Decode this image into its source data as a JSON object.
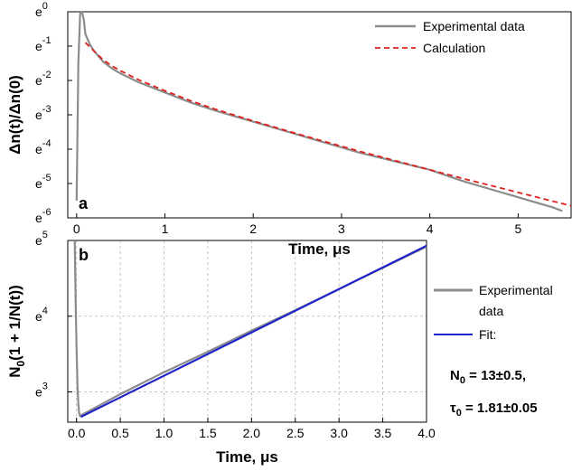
{
  "chart_data": [
    {
      "type": "line",
      "panel_label": "a",
      "xlabel": "Time, μs",
      "ylabel": "Δn(t)/Δn(0)",
      "y_scale": "log_e",
      "xlim": [
        -0.1,
        5.6
      ],
      "ylim_exponent": [
        -6,
        0
      ],
      "x_ticks": [
        0,
        1,
        2,
        3,
        4,
        5
      ],
      "y_ticks": [
        {
          "base": "e",
          "exp": "0",
          "value": 0
        },
        {
          "base": "e",
          "exp": "-1",
          "value": -1
        },
        {
          "base": "e",
          "exp": "-2",
          "value": -2
        },
        {
          "base": "e",
          "exp": "-3",
          "value": -3
        },
        {
          "base": "e",
          "exp": "-4",
          "value": -4
        },
        {
          "base": "e",
          "exp": "-5",
          "value": -5
        },
        {
          "base": "e",
          "exp": "-6",
          "value": -6
        }
      ],
      "grid": false,
      "legend_position": "top-right",
      "series": [
        {
          "name": "Experimental data",
          "color": "#8c8c8c",
          "style": "solid",
          "x": [
            0.0,
            0.02,
            0.04,
            0.06,
            0.08,
            0.1,
            0.15,
            0.2,
            0.3,
            0.4,
            0.5,
            0.7,
            1.0,
            1.3,
            1.6,
            2.0,
            2.4,
            2.8,
            3.2,
            3.6,
            4.0,
            4.4,
            4.8,
            5.0,
            5.2,
            5.4,
            5.5
          ],
          "log_y": [
            -5.5,
            -1.5,
            -0.05,
            0.0,
            -0.2,
            -0.65,
            -0.95,
            -1.15,
            -1.45,
            -1.65,
            -1.8,
            -2.05,
            -2.35,
            -2.65,
            -2.9,
            -3.2,
            -3.5,
            -3.8,
            -4.1,
            -4.35,
            -4.6,
            -4.95,
            -5.25,
            -5.4,
            -5.55,
            -5.7,
            -5.8
          ]
        },
        {
          "name": "Calculation",
          "color": "#e0201c",
          "style": "dashed",
          "x": [
            0.1,
            0.15,
            0.2,
            0.3,
            0.4,
            0.5,
            0.7,
            1.0,
            1.3,
            1.6,
            2.0,
            2.4,
            2.8,
            3.2,
            3.6,
            4.0,
            4.4,
            4.8,
            5.2,
            5.6
          ],
          "log_y": [
            -0.9,
            -1.02,
            -1.15,
            -1.4,
            -1.58,
            -1.72,
            -1.98,
            -2.3,
            -2.6,
            -2.86,
            -3.18,
            -3.48,
            -3.77,
            -4.06,
            -4.33,
            -4.6,
            -4.87,
            -5.13,
            -5.39,
            -5.65
          ]
        }
      ]
    },
    {
      "type": "line",
      "panel_label": "b",
      "xlabel": "Time, μs",
      "ylabel": "N0(1 + 1/N(t))",
      "ylabel_main": "N",
      "ylabel_sub": "0",
      "ylabel_rest": "(1 + 1/N(t))",
      "y_scale": "log_e",
      "xlim": [
        -0.1,
        4.0
      ],
      "ylim_exponent": [
        2.6,
        5
      ],
      "x_ticks": [
        "0.0",
        "0.5",
        "1.0",
        "1.5",
        "2.0",
        "2.5",
        "3.0",
        "3.5",
        "4.0"
      ],
      "y_ticks": [
        {
          "base": "e",
          "exp": "3",
          "value": 3
        },
        {
          "base": "e",
          "exp": "4",
          "value": 4
        },
        {
          "base": "e",
          "exp": "5",
          "value": 5
        }
      ],
      "grid": true,
      "legend_position": "right-outside",
      "series": [
        {
          "name": "Experimental data",
          "name_lines": [
            "Experimental",
            "data"
          ],
          "color": "#8c8c8c",
          "style": "solid",
          "x": [
            -0.02,
            -0.01,
            0.0,
            0.01,
            0.02,
            0.03,
            0.04,
            0.05,
            0.1,
            0.5,
            1.0,
            1.5,
            2.0,
            2.5,
            3.0,
            3.5,
            4.0
          ],
          "log_y": [
            5.0,
            4.2,
            3.6,
            3.1,
            2.85,
            2.72,
            2.68,
            2.69,
            2.72,
            2.97,
            3.26,
            3.53,
            3.81,
            4.08,
            4.36,
            4.64,
            4.92
          ]
        },
        {
          "name": "Fit:",
          "color": "#1f24c8",
          "style": "solid",
          "x": [
            0.05,
            4.0
          ],
          "log_y": [
            2.67,
            4.93
          ]
        }
      ],
      "annotation": {
        "n0_label": "N",
        "n0_sub": "0",
        "n0_value": " = 13±0.5,",
        "tau_label": "τ",
        "tau_sub": "0",
        "tau_value": " = 1.81±0.05"
      }
    }
  ]
}
